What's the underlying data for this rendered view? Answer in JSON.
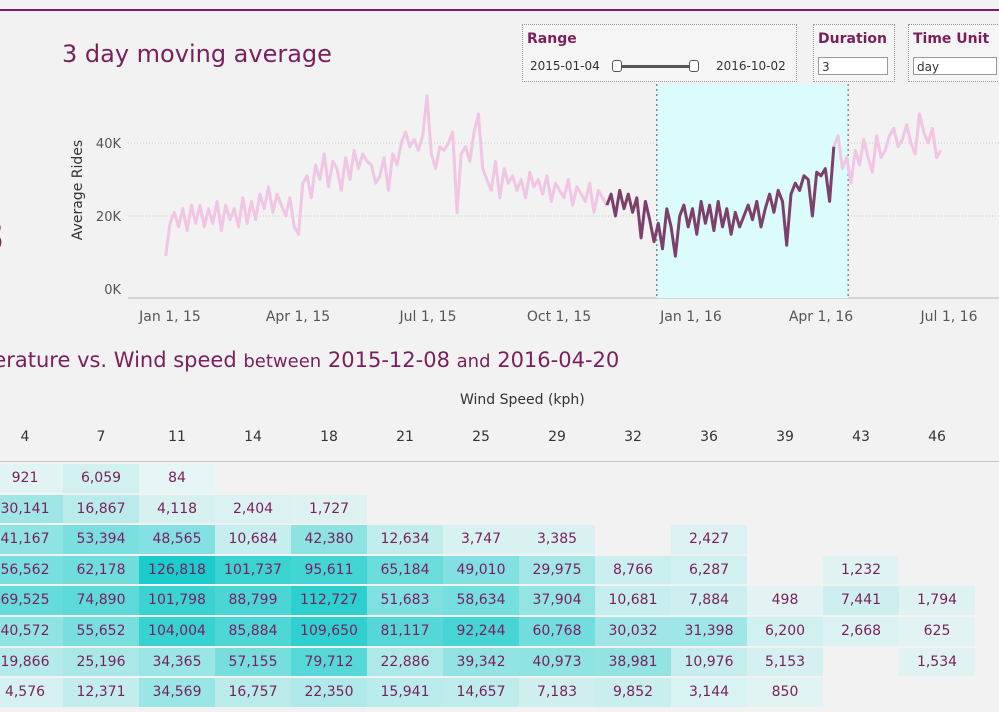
{
  "title": "3 day moving average",
  "left_clip_value": "3",
  "controls": {
    "range": {
      "label": "Range",
      "start": "2015-01-04",
      "end": "2016-10-02"
    },
    "duration": {
      "label": "Duration",
      "value": "3"
    },
    "time_unit": {
      "label": "Time Unit",
      "value": "day"
    }
  },
  "chart_data": {
    "type": "line",
    "ylabel": "Average Rides",
    "y_ticks": [
      "0K",
      "20K",
      "40K"
    ],
    "ylim": [
      0,
      55000
    ],
    "x_ticks": [
      "Jan 1, 15",
      "Apr 1, 15",
      "Jul 1, 15",
      "Oct 1, 15",
      "Jan 1, 16",
      "Apr 1, 16",
      "Jul 1, 16"
    ],
    "x_start": "2014-12-29",
    "highlight_range": [
      "2015-12-08",
      "2016-04-20"
    ],
    "grid": true,
    "series": [
      {
        "values": [
          9000,
          18000,
          21000,
          17000,
          22000,
          16000,
          23000,
          18000,
          23000,
          17000,
          22000,
          18000,
          24000,
          16000,
          23000,
          19000,
          22000,
          17000,
          25000,
          18000,
          24000,
          19000,
          26000,
          22000,
          28000,
          21000,
          26000,
          23000,
          20000,
          25000,
          17000,
          15000,
          29000,
          31000,
          25000,
          34000,
          30000,
          37000,
          28000,
          35000,
          33000,
          27000,
          36000,
          30000,
          38000,
          33000,
          37000,
          35000,
          34000,
          29000,
          31000,
          36000,
          27000,
          37000,
          34000,
          40000,
          43000,
          39000,
          41000,
          38000,
          42000,
          53000,
          37000,
          33000,
          39000,
          38000,
          40000,
          43000,
          21000,
          37000,
          39000,
          35000,
          43000,
          48000,
          33000,
          30000,
          27000,
          35000,
          25000,
          33000,
          29000,
          31000,
          27000,
          30000,
          25000,
          32000,
          28000,
          30000,
          26000,
          31000,
          24000,
          29000,
          27000,
          25000,
          30000,
          23000,
          28000,
          26000,
          24000,
          29000,
          21000,
          27000,
          25000,
          23000,
          26000,
          20000,
          27000,
          22000,
          26000,
          21000,
          25000,
          14000,
          24000,
          19000,
          13000,
          18000,
          11000,
          22000,
          17000,
          9000,
          20000,
          23000,
          17000,
          22000,
          15000,
          24000,
          18000,
          23000,
          16000,
          24000,
          17000,
          22000,
          15000,
          21000,
          17000,
          20000,
          23000,
          19000,
          24000,
          17000,
          22000,
          26000,
          21000,
          27000,
          24000,
          12000,
          26000,
          29000,
          27000,
          31000,
          30000,
          20000,
          32000,
          31000,
          33000,
          24000,
          39000,
          42000,
          33000,
          36000,
          29000,
          38000,
          34000,
          41000,
          36000,
          32000,
          42000,
          36000,
          38000,
          42000,
          44000,
          39000,
          41000,
          45000,
          40000,
          37000,
          48000,
          43000,
          40000,
          44000,
          36000,
          38000
        ]
      }
    ],
    "highlight_series_index_range": [
      103,
      156
    ]
  },
  "heatmap": {
    "subtitle_prefix": "perature vs. Wind speed",
    "subtitle_between": "between",
    "start_date": "2015-12-08",
    "and_text": "and",
    "end_date": "2016-04-20",
    "x_axis_label": "Wind Speed (kph)",
    "columns": [
      "4",
      "7",
      "11",
      "14",
      "18",
      "21",
      "25",
      "29",
      "32",
      "36",
      "39",
      "43",
      "46"
    ],
    "rows": [
      [
        "921",
        "6,059",
        "84",
        "",
        "",
        "",
        "",
        "",
        "",
        "",
        "",
        "",
        ""
      ],
      [
        "30,141",
        "16,867",
        "4,118",
        "2,404",
        "1,727",
        "",
        "",
        "",
        "",
        "",
        "",
        "",
        ""
      ],
      [
        "41,167",
        "53,394",
        "48,565",
        "10,684",
        "42,380",
        "12,634",
        "3,747",
        "3,385",
        "",
        "2,427",
        "",
        "",
        ""
      ],
      [
        "56,562",
        "62,178",
        "126,818",
        "101,737",
        "95,611",
        "65,184",
        "49,010",
        "29,975",
        "8,766",
        "6,287",
        "",
        "1,232",
        ""
      ],
      [
        "69,525",
        "74,890",
        "101,798",
        "88,799",
        "112,727",
        "51,683",
        "58,634",
        "37,904",
        "10,681",
        "7,884",
        "498",
        "7,441",
        "1,794"
      ],
      [
        "40,572",
        "55,652",
        "104,004",
        "85,884",
        "109,650",
        "81,117",
        "92,244",
        "60,768",
        "30,032",
        "31,398",
        "6,200",
        "2,668",
        "625"
      ],
      [
        "19,866",
        "25,196",
        "34,365",
        "57,155",
        "79,712",
        "22,886",
        "39,342",
        "40,973",
        "38,981",
        "10,976",
        "5,153",
        "",
        "1,534"
      ],
      [
        "4,576",
        "12,371",
        "34,569",
        "16,757",
        "22,350",
        "15,941",
        "14,657",
        "7,183",
        "9,852",
        "3,144",
        "850",
        "",
        ""
      ]
    ],
    "color_low": "#e6f4f4",
    "color_high": "#1ccccc"
  }
}
